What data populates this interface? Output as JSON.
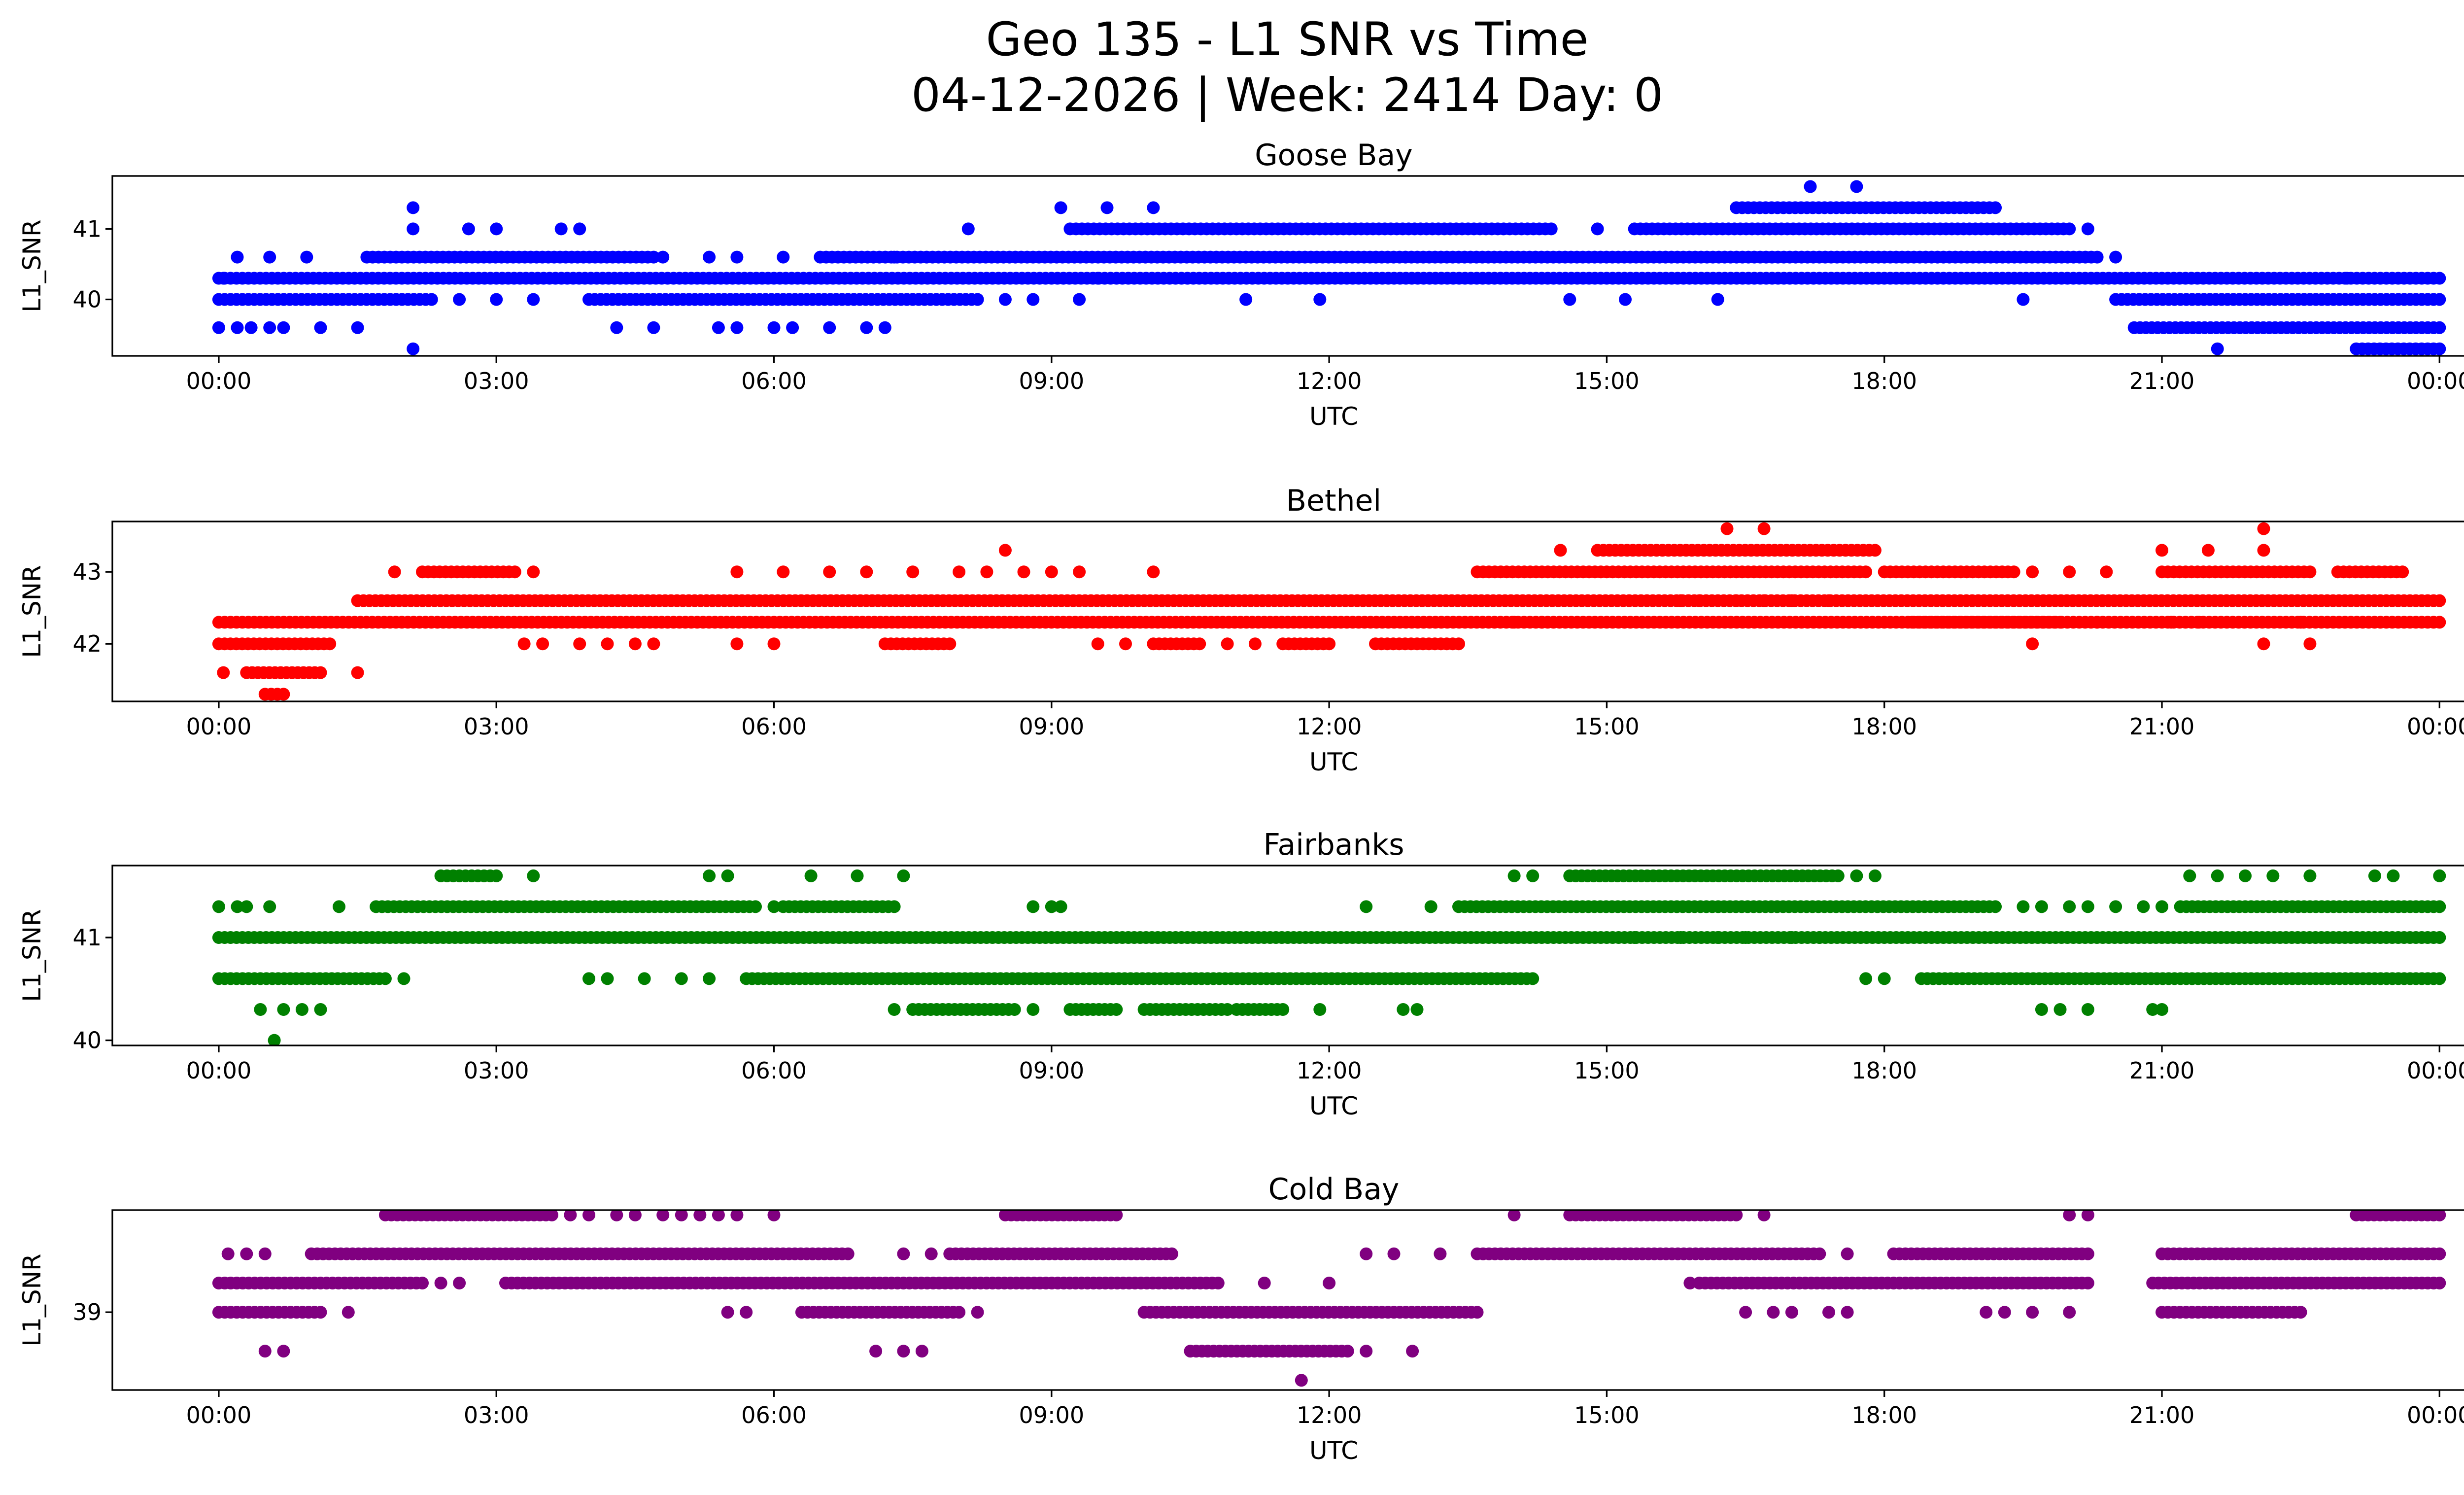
{
  "chart_data": {
    "type": "scatter",
    "title_line1": "Geo 135 - L1 SNR vs Time",
    "title_line2": "04-12-2026 | Week: 2414 Day: 0",
    "x_tick_labels": [
      "00:00",
      "03:00",
      "06:00",
      "09:00",
      "12:00",
      "15:00",
      "18:00",
      "21:00",
      "00:00"
    ],
    "xlim_hours": [
      -1.15,
      25.25
    ],
    "xlabel": "UTC",
    "ylabel": "L1_SNR",
    "panels": [
      {
        "name": "Goose Bay",
        "color": "#0000ff",
        "ylim": [
          39.2,
          41.75
        ],
        "yticks": [
          40,
          41
        ],
        "levels": [
          39.3,
          39.6,
          40.0,
          40.3,
          40.6,
          41.0,
          41.3,
          41.6
        ],
        "dense": [
          [
            40.3,
            0.0,
            24.0
          ],
          [
            40.0,
            0.0,
            2.3
          ],
          [
            40.0,
            4.0,
            8.2
          ],
          [
            40.0,
            20.5,
            24.0
          ],
          [
            40.6,
            1.6,
            4.7
          ],
          [
            40.6,
            6.5,
            20.3
          ],
          [
            41.0,
            9.2,
            14.4
          ],
          [
            41.0,
            15.3,
            20.0
          ],
          [
            41.3,
            16.4,
            19.2
          ],
          [
            39.6,
            20.7,
            24.0
          ],
          [
            39.3,
            23.1,
            24.0
          ]
        ],
        "sparse": [
          [
            39.6,
            0.0
          ],
          [
            39.6,
            0.2
          ],
          [
            39.6,
            0.35
          ],
          [
            39.6,
            0.55
          ],
          [
            39.6,
            0.7
          ],
          [
            39.6,
            1.1
          ],
          [
            39.6,
            1.5
          ],
          [
            39.6,
            4.3
          ],
          [
            39.6,
            4.7
          ],
          [
            39.6,
            5.4
          ],
          [
            39.6,
            5.6
          ],
          [
            39.6,
            6.0
          ],
          [
            39.6,
            6.2
          ],
          [
            39.6,
            6.6
          ],
          [
            39.6,
            7.0
          ],
          [
            39.6,
            7.2
          ],
          [
            39.3,
            2.1
          ],
          [
            39.3,
            21.6
          ],
          [
            40.0,
            2.6
          ],
          [
            40.0,
            3.0
          ],
          [
            40.0,
            3.4
          ],
          [
            40.0,
            8.5
          ],
          [
            40.0,
            8.8
          ],
          [
            40.0,
            9.3
          ],
          [
            40.0,
            11.1
          ],
          [
            40.0,
            11.9
          ],
          [
            40.0,
            14.6
          ],
          [
            40.0,
            15.2
          ],
          [
            40.0,
            16.2
          ],
          [
            40.0,
            19.5
          ],
          [
            40.6,
            0.2
          ],
          [
            40.6,
            0.55
          ],
          [
            40.6,
            0.95
          ],
          [
            40.6,
            4.8
          ],
          [
            40.6,
            5.3
          ],
          [
            40.6,
            5.6
          ],
          [
            40.6,
            6.1
          ],
          [
            40.6,
            7.3
          ],
          [
            41.0,
            2.1
          ],
          [
            41.0,
            2.7
          ],
          [
            41.0,
            3.0
          ],
          [
            41.0,
            3.7
          ],
          [
            41.0,
            3.9
          ],
          [
            41.0,
            8.1
          ],
          [
            41.0,
            14.9
          ],
          [
            41.0,
            20.2
          ],
          [
            41.3,
            2.1
          ],
          [
            41.3,
            9.1
          ],
          [
            41.3,
            9.6
          ],
          [
            41.3,
            10.1
          ],
          [
            41.6,
            17.2
          ],
          [
            41.6,
            17.7
          ],
          [
            40.3,
            0.05
          ],
          [
            40.3,
            23.0
          ],
          [
            40.6,
            20.5
          ],
          [
            40.3,
            9.5
          ]
        ]
      },
      {
        "name": "Bethel",
        "color": "#ff0000",
        "ylim": [
          41.2,
          43.7
        ],
        "yticks": [
          42,
          43
        ],
        "levels": [
          41.3,
          41.6,
          42.0,
          42.3,
          42.6,
          43.0,
          43.3,
          43.6
        ],
        "dense": [
          [
            42.3,
            0.0,
            24.0
          ],
          [
            42.6,
            1.5,
            24.0
          ],
          [
            42.0,
            0.0,
            1.2
          ],
          [
            41.6,
            0.3,
            1.1
          ],
          [
            41.3,
            0.5,
            0.7
          ],
          [
            43.0,
            2.2,
            3.2
          ],
          [
            43.0,
            13.6,
            17.8
          ],
          [
            43.0,
            18.0,
            19.4
          ],
          [
            43.0,
            21.0,
            22.6
          ],
          [
            43.0,
            22.9,
            23.6
          ],
          [
            43.3,
            14.9,
            17.9
          ],
          [
            42.0,
            7.2,
            7.9
          ],
          [
            42.0,
            10.1,
            10.6
          ],
          [
            42.0,
            11.5,
            12.0
          ],
          [
            42.0,
            12.5,
            13.4
          ],
          [
            42.3,
            18.3,
            19.9
          ]
        ],
        "sparse": [
          [
            41.6,
            0.05
          ],
          [
            41.6,
            1.5
          ],
          [
            42.0,
            3.3
          ],
          [
            42.0,
            3.5
          ],
          [
            42.0,
            3.9
          ],
          [
            42.0,
            4.2
          ],
          [
            42.0,
            4.5
          ],
          [
            42.0,
            4.7
          ],
          [
            42.0,
            5.6
          ],
          [
            42.0,
            6.0
          ],
          [
            42.0,
            9.5
          ],
          [
            42.0,
            9.8
          ],
          [
            42.0,
            10.9
          ],
          [
            42.0,
            11.2
          ],
          [
            42.0,
            19.6
          ],
          [
            42.0,
            22.1
          ],
          [
            42.0,
            22.6
          ],
          [
            43.0,
            1.9
          ],
          [
            43.0,
            3.4
          ],
          [
            43.0,
            5.6
          ],
          [
            43.0,
            6.1
          ],
          [
            43.0,
            6.6
          ],
          [
            43.0,
            7.0
          ],
          [
            43.0,
            7.5
          ],
          [
            43.0,
            8.0
          ],
          [
            43.0,
            8.3
          ],
          [
            43.0,
            8.7
          ],
          [
            43.0,
            9.0
          ],
          [
            43.0,
            9.3
          ],
          [
            43.0,
            10.1
          ],
          [
            43.0,
            19.6
          ],
          [
            43.0,
            20.0
          ],
          [
            43.0,
            20.4
          ],
          [
            43.3,
            8.5
          ],
          [
            43.3,
            14.5
          ],
          [
            43.3,
            21.0
          ],
          [
            43.3,
            21.5
          ],
          [
            43.3,
            22.1
          ],
          [
            43.6,
            16.3
          ],
          [
            43.6,
            16.7
          ],
          [
            43.6,
            22.1
          ],
          [
            42.6,
            15.8
          ],
          [
            42.6,
            16.0
          ],
          [
            42.6,
            16.4
          ],
          [
            42.6,
            16.7
          ],
          [
            42.6,
            17.0
          ],
          [
            42.6,
            17.4
          ],
          [
            42.3,
            20.3
          ],
          [
            42.3,
            21.1
          ],
          [
            42.3,
            21.4
          ],
          [
            42.3,
            22.5
          ],
          [
            42.3,
            14.0
          ],
          [
            42.3,
            14.3
          ]
        ]
      },
      {
        "name": "Fairbanks",
        "color": "#008000",
        "ylim": [
          39.95,
          41.7
        ],
        "yticks": [
          40,
          41
        ],
        "levels": [
          40.0,
          40.3,
          40.6,
          41.0,
          41.3,
          41.6
        ],
        "dense": [
          [
            41.0,
            0.0,
            24.0
          ],
          [
            41.3,
            1.7,
            5.8
          ],
          [
            41.3,
            6.1,
            7.3
          ],
          [
            41.3,
            13.4,
            19.2
          ],
          [
            41.3,
            21.2,
            24.0
          ],
          [
            41.6,
            2.4,
            3.0
          ],
          [
            41.6,
            14.6,
            17.5
          ],
          [
            40.6,
            0.0,
            1.8
          ],
          [
            40.6,
            5.7,
            14.2
          ],
          [
            40.6,
            18.4,
            24.0
          ],
          [
            40.3,
            7.5,
            8.6
          ],
          [
            40.3,
            9.2,
            9.7
          ],
          [
            40.3,
            10.0,
            10.9
          ],
          [
            40.3,
            11.0,
            11.5
          ]
        ],
        "sparse": [
          [
            40.0,
            0.6
          ],
          [
            40.3,
            0.45
          ],
          [
            40.3,
            0.7
          ],
          [
            40.3,
            0.9
          ],
          [
            40.3,
            1.1
          ],
          [
            40.3,
            7.3
          ],
          [
            40.3,
            8.8
          ],
          [
            40.3,
            11.9
          ],
          [
            40.3,
            12.8
          ],
          [
            40.3,
            12.95
          ],
          [
            40.3,
            19.7
          ],
          [
            40.3,
            19.9
          ],
          [
            40.3,
            20.2
          ],
          [
            40.3,
            20.9
          ],
          [
            40.3,
            21.0
          ],
          [
            40.6,
            2.0
          ],
          [
            40.6,
            4.0
          ],
          [
            40.6,
            4.2
          ],
          [
            40.6,
            4.6
          ],
          [
            40.6,
            5.0
          ],
          [
            40.6,
            5.3
          ],
          [
            40.6,
            17.8
          ],
          [
            40.6,
            18.0
          ],
          [
            41.3,
            0.0
          ],
          [
            41.3,
            0.2
          ],
          [
            41.3,
            0.3
          ],
          [
            41.3,
            0.55
          ],
          [
            41.3,
            1.3
          ],
          [
            41.3,
            6.0
          ],
          [
            41.3,
            8.8
          ],
          [
            41.3,
            9.0
          ],
          [
            41.3,
            9.1
          ],
          [
            41.3,
            12.4
          ],
          [
            41.3,
            13.1
          ],
          [
            41.3,
            19.5
          ],
          [
            41.3,
            19.7
          ],
          [
            41.3,
            20.0
          ],
          [
            41.3,
            20.2
          ],
          [
            41.3,
            20.5
          ],
          [
            41.3,
            20.8
          ],
          [
            41.3,
            21.0
          ],
          [
            41.6,
            3.4
          ],
          [
            41.6,
            5.3
          ],
          [
            41.6,
            5.5
          ],
          [
            41.6,
            6.4
          ],
          [
            41.6,
            6.9
          ],
          [
            41.6,
            7.4
          ],
          [
            41.6,
            14.0
          ],
          [
            41.6,
            14.2
          ],
          [
            41.6,
            17.7
          ],
          [
            41.6,
            17.9
          ],
          [
            41.6,
            21.3
          ],
          [
            41.6,
            21.6
          ],
          [
            41.6,
            21.9
          ],
          [
            41.6,
            22.2
          ],
          [
            41.6,
            22.6
          ],
          [
            41.6,
            23.3
          ],
          [
            41.6,
            23.5
          ],
          [
            41.6,
            24.0
          ],
          [
            41.0,
            15.3
          ],
          [
            41.0,
            15.8
          ],
          [
            41.0,
            16.2
          ],
          [
            41.0,
            16.5
          ],
          [
            41.0,
            17.0
          ],
          [
            41.0,
            17.3
          ]
        ]
      },
      {
        "name": "Cold Bay",
        "color": "#800080",
        "ylim": [
          38.2,
          40.05
        ],
        "yticks": [
          39
        ],
        "levels": [
          38.3,
          38.6,
          39.0,
          39.3,
          39.6,
          40.0
        ],
        "dense": [
          [
            39.3,
            0.0,
            2.2
          ],
          [
            39.3,
            3.1,
            10.8
          ],
          [
            39.3,
            16.0,
            20.2
          ],
          [
            39.3,
            20.9,
            24.0
          ],
          [
            39.6,
            1.0,
            6.8
          ],
          [
            39.6,
            7.9,
            10.3
          ],
          [
            39.6,
            13.6,
            17.3
          ],
          [
            39.6,
            18.1,
            20.2
          ],
          [
            39.6,
            21.0,
            24.0
          ],
          [
            40.0,
            1.8,
            3.6
          ],
          [
            40.0,
            8.5,
            9.7
          ],
          [
            40.0,
            14.6,
            16.4
          ],
          [
            40.0,
            23.1,
            24.0
          ],
          [
            39.0,
            0.0,
            1.1
          ],
          [
            39.0,
            6.3,
            8.0
          ],
          [
            39.0,
            10.0,
            13.6
          ],
          [
            39.0,
            21.0,
            22.5
          ],
          [
            38.6,
            10.5,
            12.2
          ]
        ],
        "sparse": [
          [
            38.3,
            11.7
          ],
          [
            38.6,
            0.5
          ],
          [
            38.6,
            0.7
          ],
          [
            38.6,
            7.1
          ],
          [
            38.6,
            7.4
          ],
          [
            38.6,
            7.6
          ],
          [
            38.6,
            12.4
          ],
          [
            38.6,
            12.9
          ],
          [
            39.0,
            1.4
          ],
          [
            39.0,
            5.5
          ],
          [
            39.0,
            5.7
          ],
          [
            39.0,
            8.2
          ],
          [
            39.0,
            16.5
          ],
          [
            39.0,
            16.8
          ],
          [
            39.0,
            17.0
          ],
          [
            39.0,
            17.4
          ],
          [
            39.0,
            17.6
          ],
          [
            39.0,
            19.1
          ],
          [
            39.0,
            19.3
          ],
          [
            39.0,
            19.6
          ],
          [
            39.0,
            20.0
          ],
          [
            39.3,
            2.4
          ],
          [
            39.3,
            2.6
          ],
          [
            39.3,
            11.3
          ],
          [
            39.3,
            12.0
          ],
          [
            39.3,
            15.9
          ],
          [
            39.6,
            0.1
          ],
          [
            39.6,
            0.3
          ],
          [
            39.6,
            0.5
          ],
          [
            39.6,
            7.4
          ],
          [
            39.6,
            7.7
          ],
          [
            39.6,
            12.4
          ],
          [
            39.6,
            12.7
          ],
          [
            39.6,
            13.2
          ],
          [
            39.6,
            17.6
          ],
          [
            40.0,
            3.8
          ],
          [
            40.0,
            4.0
          ],
          [
            40.0,
            4.3
          ],
          [
            40.0,
            4.5
          ],
          [
            40.0,
            4.8
          ],
          [
            40.0,
            5.0
          ],
          [
            40.0,
            5.2
          ],
          [
            40.0,
            5.4
          ],
          [
            40.0,
            5.6
          ],
          [
            40.0,
            6.0
          ],
          [
            40.0,
            14.0
          ],
          [
            40.0,
            16.7
          ],
          [
            40.0,
            20.0
          ],
          [
            40.0,
            20.2
          ]
        ]
      }
    ]
  }
}
